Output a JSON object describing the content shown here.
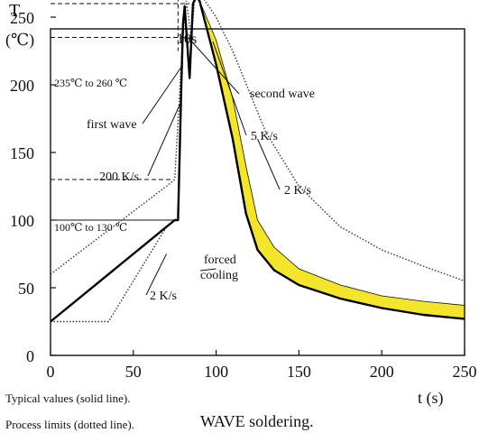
{
  "chart_data": {
    "type": "line",
    "title": "",
    "ylabel": "T",
    "ylabel_unit": "(℃)",
    "xlabel": "t (s)",
    "xlim": [
      0,
      250
    ],
    "ylim": [
      0,
      275
    ],
    "x_ticks": [
      0,
      50,
      100,
      150,
      200,
      250
    ],
    "y_ticks": [
      0,
      50,
      100,
      150,
      200,
      250
    ],
    "grid": false,
    "series": [
      {
        "style": "solid",
        "color": "#000000",
        "x": [
          0,
          75,
          77,
          79,
          80,
          81,
          82,
          84,
          86,
          88,
          90,
          100,
          110,
          118,
          125,
          135,
          150,
          175,
          200,
          225,
          250
        ],
        "y": [
          25,
          100,
          100,
          200,
          245,
          258,
          240,
          205,
          260,
          265,
          262,
          215,
          160,
          105,
          78,
          63,
          52,
          42,
          35,
          30,
          27
        ]
      },
      {
        "style": "band",
        "color": "#f3e62a",
        "x": [
          90,
          100,
          110,
          118,
          125,
          135,
          150,
          175,
          200,
          225,
          250
        ],
        "y": [
          262,
          233,
          190,
          140,
          100,
          80,
          64,
          52,
          44,
          40,
          37
        ]
      },
      {
        "style": "dotted",
        "color": "#333333",
        "x": [
          0,
          70,
          75,
          80,
          82,
          85,
          87,
          90,
          100,
          110,
          120,
          130,
          150,
          175,
          200,
          225,
          250
        ],
        "y": [
          60,
          125,
          130,
          238,
          262,
          235,
          262,
          268,
          250,
          225,
          195,
          165,
          125,
          95,
          78,
          66,
          55
        ]
      },
      {
        "style": "dotted",
        "color": "#333333",
        "x": [
          0,
          35,
          70,
          75
        ],
        "y": [
          25,
          25,
          95,
          100
        ]
      }
    ],
    "annotations": [
      {
        "text": "10s"
      },
      {
        "text": "235℃ to 260 ℃"
      },
      {
        "text": "second wave"
      },
      {
        "text": "first wave"
      },
      {
        "text": "5 K/s"
      },
      {
        "text": "200 K/s"
      },
      {
        "text": "2 K/s"
      },
      {
        "text": "100℃  to 130 ℃"
      },
      {
        "text": "forced cooling"
      },
      {
        "text": "2 K/s"
      }
    ]
  },
  "notes": {
    "typical": "Typical values (solid line).",
    "limits": "Process limits (dotted line).",
    "caption": "WAVE soldering."
  }
}
